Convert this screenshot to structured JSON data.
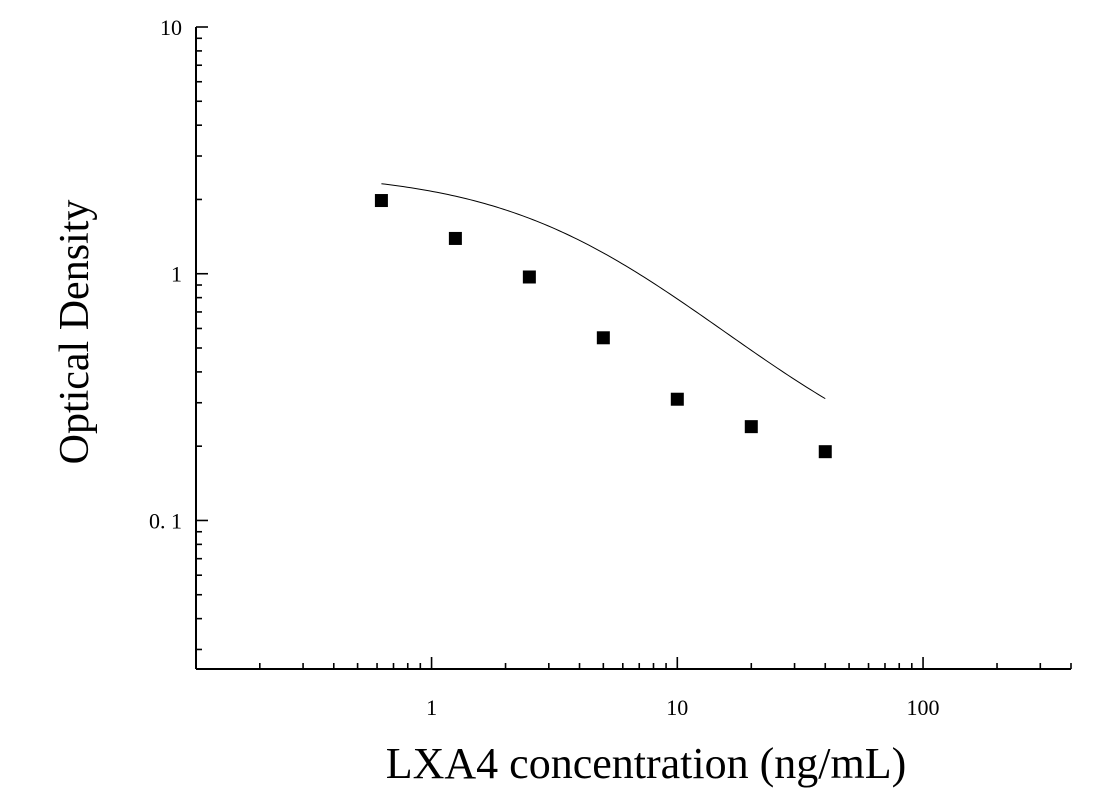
{
  "chart_data": {
    "type": "scatter",
    "xlabel": "LXA4 concentration (ng/mL)",
    "ylabel": "Optical Density",
    "x_scale": "log",
    "y_scale": "log",
    "xlim": [
      0.11,
      400
    ],
    "ylim": [
      0.025,
      10
    ],
    "x_tick_labels": [
      "1",
      "10",
      "100"
    ],
    "y_tick_labels": [
      "0. 1",
      "1",
      "10"
    ],
    "grid": false,
    "legend": "none",
    "series": [
      {
        "points": [
          {
            "x": 0.625,
            "y": 1.98
          },
          {
            "x": 1.25,
            "y": 1.39
          },
          {
            "x": 2.5,
            "y": 0.97
          },
          {
            "x": 5,
            "y": 0.55
          },
          {
            "x": 10,
            "y": 0.31
          },
          {
            "x": 20,
            "y": 0.24
          },
          {
            "x": 40,
            "y": 0.19
          }
        ],
        "fit": {
          "model": "4PL",
          "A": 2.6,
          "B": 1.1,
          "C": 4.0,
          "D": 0.13
        }
      }
    ]
  }
}
